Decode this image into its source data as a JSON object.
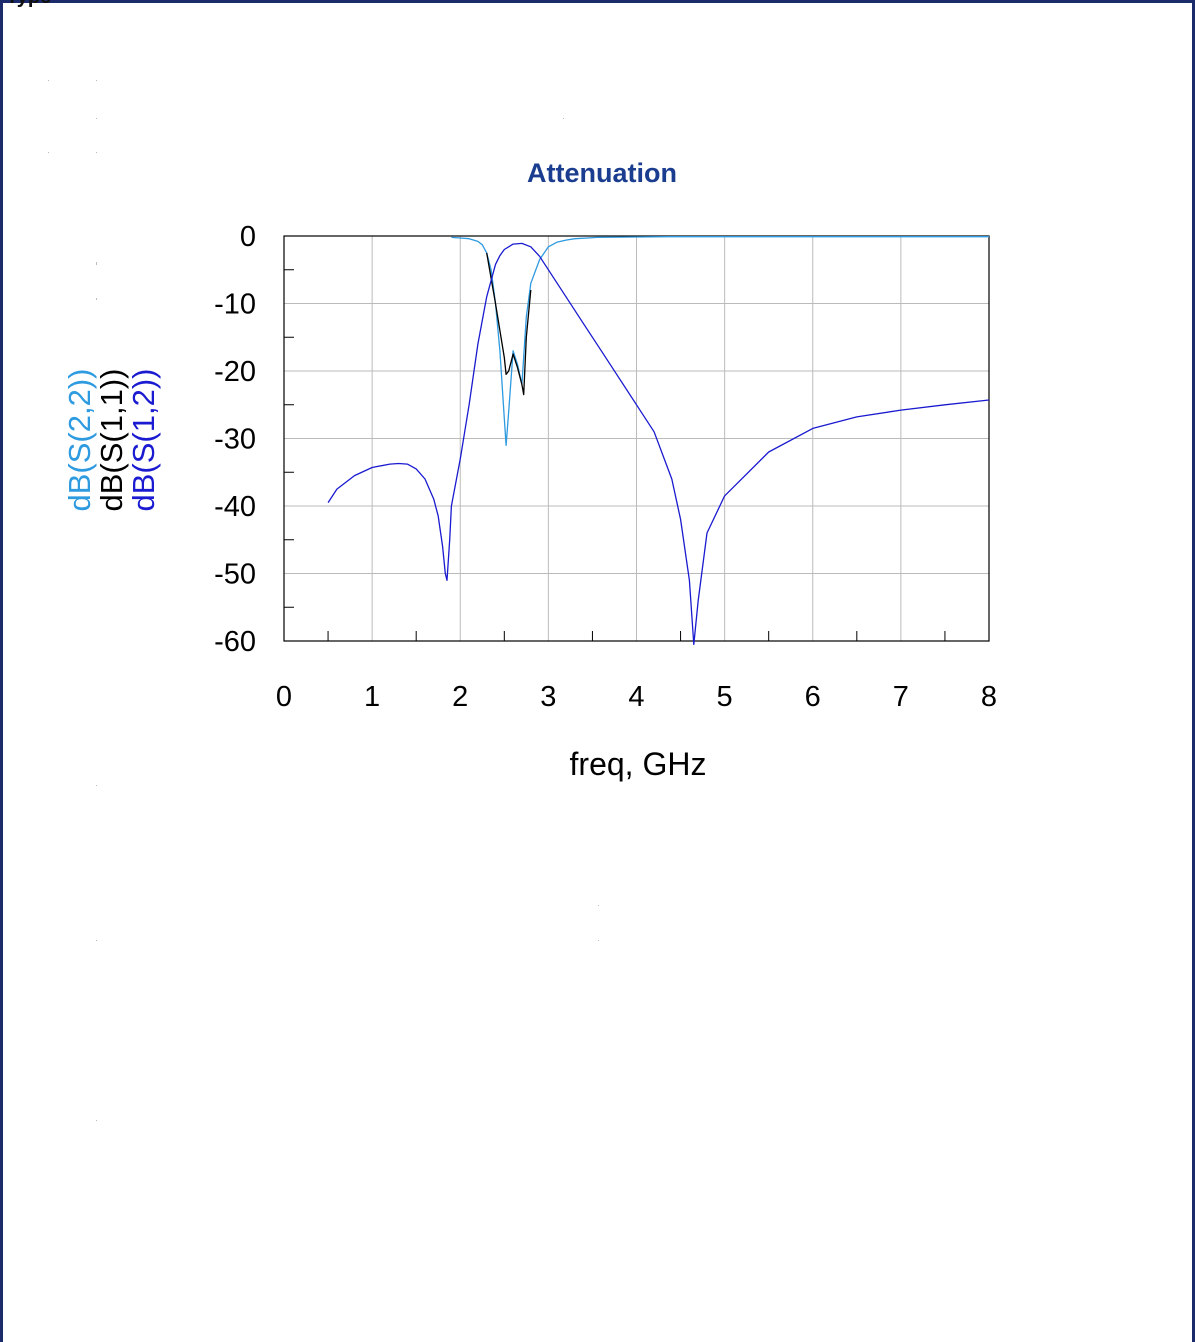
{
  "page": {
    "top_text": "Type",
    "frame_color": "#1a2a6a"
  },
  "chart_data": {
    "type": "line",
    "title": "Attenuation",
    "xlabel": "freq, GHz",
    "ylabel_series": [
      "dB(S(2,2))",
      "dB(S(1,1))",
      "dB(S(1,2))"
    ],
    "xlim": [
      0,
      8
    ],
    "ylim": [
      -60,
      0
    ],
    "xticks": [
      "0",
      "1",
      "2",
      "3",
      "4",
      "5",
      "6",
      "7",
      "8"
    ],
    "yticks": [
      "0",
      "-10",
      "-20",
      "-30",
      "-40",
      "-50",
      "-60"
    ],
    "grid": true,
    "colors": {
      "title": "#1a3d8f",
      "S22": "#2e9ae0",
      "S11": "#000000",
      "S12": "#1a1ad0",
      "grid": "#bbbbbb"
    },
    "series": [
      {
        "name": "dB(S(2,2))",
        "color": "#2e9ae0",
        "x": [
          1.9,
          2.0,
          2.1,
          2.2,
          2.25,
          2.3,
          2.35,
          2.4,
          2.45,
          2.5,
          2.52,
          2.55,
          2.6,
          2.65,
          2.7,
          2.75,
          2.8,
          2.9,
          3.0,
          3.1,
          3.2,
          3.3,
          3.45,
          3.55,
          4.35,
          4.5,
          5.0,
          6.0,
          7.0,
          8.0
        ],
        "y": [
          -0.2,
          -0.3,
          -0.4,
          -0.8,
          -1.3,
          -2.5,
          -5,
          -10,
          -17,
          -27,
          -31,
          -26,
          -17,
          -19,
          -22,
          -12,
          -7,
          -3.5,
          -1.6,
          -0.9,
          -0.6,
          -0.4,
          -0.3,
          -0.2,
          -0.1,
          -0.1,
          -0.1,
          -0.1,
          -0.1,
          -0.1
        ]
      },
      {
        "name": "dB(S(1,1))",
        "color": "#000000",
        "x": [
          2.3,
          2.4,
          2.45,
          2.5,
          2.52,
          2.55,
          2.6,
          2.65,
          2.7,
          2.72,
          2.75,
          2.8
        ],
        "y": [
          -2.5,
          -10,
          -14,
          -18,
          -20.5,
          -20,
          -17.5,
          -19.5,
          -22,
          -23.5,
          -15,
          -8
        ]
      },
      {
        "name": "dB(S(1,2))",
        "color": "#1a1ad0",
        "x": [
          0.5,
          0.6,
          0.8,
          1.0,
          1.2,
          1.3,
          1.4,
          1.5,
          1.6,
          1.7,
          1.75,
          1.8,
          1.83,
          1.85,
          1.88,
          1.9,
          2.0,
          2.1,
          2.2,
          2.3,
          2.4,
          2.45,
          2.5,
          2.6,
          2.7,
          2.8,
          2.9,
          3.0,
          3.2,
          3.4,
          3.6,
          3.8,
          4.0,
          4.2,
          4.4,
          4.5,
          4.6,
          4.65,
          4.7,
          4.8,
          5.0,
          5.5,
          6.0,
          6.5,
          7.0,
          7.5,
          8.0
        ],
        "y": [
          -39.5,
          -37.5,
          -35.5,
          -34.3,
          -33.8,
          -33.7,
          -33.8,
          -34.5,
          -36,
          -39,
          -41.5,
          -46,
          -50,
          -51,
          -45,
          -40,
          -33,
          -25,
          -16,
          -9,
          -4.2,
          -2.9,
          -2,
          -1.2,
          -1.1,
          -1.6,
          -3,
          -5,
          -9,
          -13,
          -17,
          -21,
          -25,
          -29,
          -36,
          -42,
          -51,
          -60.5,
          -54,
          -44,
          -38.5,
          -32,
          -28.5,
          -26.8,
          -25.8,
          -25,
          -24.3
        ]
      }
    ]
  }
}
